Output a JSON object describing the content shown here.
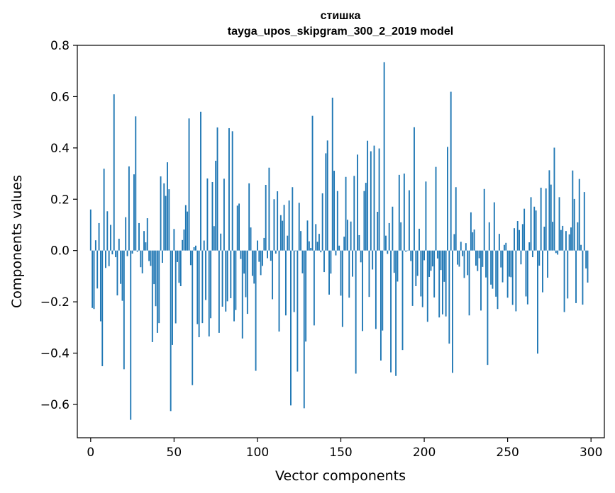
{
  "chart_data": {
    "type": "bar",
    "title": "стишка",
    "subtitle": "tayga_upos_skipgram_300_2_2019 model",
    "xlabel": "Vector components",
    "ylabel": "Components values",
    "xlim": [
      -8,
      308
    ],
    "ylim": [
      -0.73,
      0.8
    ],
    "xticks": [
      0,
      50,
      100,
      150,
      200,
      250,
      300
    ],
    "xtick_labels": [
      "0",
      "50",
      "100",
      "150",
      "200",
      "250",
      "300"
    ],
    "yticks": [
      -0.6,
      -0.4,
      -0.2,
      0.0,
      0.2,
      0.4,
      0.6,
      0.8
    ],
    "ytick_labels": [
      "−0.6",
      "−0.4",
      "−0.2",
      "0.0",
      "0.2",
      "0.4",
      "0.6",
      "0.8"
    ],
    "bar_color": "#1f77b4",
    "grid": false,
    "legend": "none",
    "x_start": 0,
    "values": [
      0.16,
      -0.224,
      -0.228,
      0.04,
      -0.148,
      0.107,
      -0.276,
      -0.451,
      0.319,
      -0.068,
      0.153,
      -0.061,
      0.1,
      -0.015,
      0.609,
      -0.026,
      -0.175,
      0.046,
      -0.13,
      -0.196,
      -0.463,
      0.13,
      -0.022,
      0.328,
      -0.66,
      -0.012,
      0.297,
      0.523,
      -0.005,
      0.107,
      -0.065,
      -0.089,
      0.076,
      0.032,
      0.126,
      -0.041,
      -0.06,
      -0.357,
      -0.131,
      -0.217,
      -0.321,
      -0.283,
      0.289,
      -0.048,
      0.262,
      0.213,
      0.344,
      0.239,
      -0.626,
      -0.368,
      0.084,
      -0.284,
      -0.045,
      -0.126,
      -0.139,
      0.041,
      0.082,
      0.177,
      0.152,
      0.515,
      -0.057,
      -0.525,
      0.013,
      0.019,
      -0.287,
      -0.338,
      0.541,
      -0.283,
      0.039,
      -0.193,
      0.281,
      -0.335,
      -0.264,
      0.267,
      0.095,
      0.35,
      0.48,
      -0.321,
      0.066,
      -0.219,
      0.28,
      -0.238,
      -0.198,
      0.477,
      -0.186,
      0.465,
      -0.276,
      -0.232,
      0.175,
      0.183,
      -0.033,
      -0.343,
      -0.09,
      -0.182,
      -0.247,
      0.262,
      0.09,
      -0.099,
      -0.129,
      -0.469,
      0.039,
      -0.044,
      -0.096,
      -0.06,
      0.049,
      0.256,
      -0.03,
      0.323,
      -0.04,
      -0.19,
      0.2,
      -0.012,
      0.231,
      -0.316,
      0.138,
      0.116,
      0.178,
      -0.253,
      0.058,
      0.195,
      -0.604,
      0.247,
      -0.24,
      -0.002,
      -0.472,
      0.186,
      0.076,
      -0.089,
      -0.615,
      -0.355,
      0.117,
      0.036,
      0.01,
      0.525,
      -0.292,
      0.103,
      0.034,
      0.065,
      -0.007,
      0.223,
      -0.084,
      0.379,
      0.429,
      -0.172,
      -0.09,
      0.596,
      0.311,
      -0.019,
      0.232,
      0.019,
      -0.176,
      -0.298,
      0.054,
      0.287,
      0.12,
      -0.184,
      0.113,
      -0.102,
      0.291,
      -0.48,
      0.374,
      0.06,
      -0.046,
      -0.314,
      0.232,
      0.264,
      0.428,
      -0.181,
      0.387,
      -0.074,
      0.409,
      -0.306,
      0.151,
      0.398,
      -0.429,
      -0.312,
      0.734,
      0.058,
      -0.013,
      0.107,
      -0.475,
      0.171,
      -0.087,
      -0.489,
      -0.121,
      0.295,
      0.11,
      -0.388,
      0.3,
      -0.005,
      -0.001,
      0.235,
      -0.041,
      -0.216,
      0.481,
      -0.139,
      -0.099,
      0.085,
      -0.179,
      -0.221,
      -0.038,
      0.269,
      -0.278,
      -0.103,
      -0.079,
      -0.062,
      -0.183,
      0.326,
      -0.031,
      -0.261,
      -0.076,
      -0.249,
      -0.122,
      -0.257,
      0.404,
      -0.363,
      0.619,
      -0.477,
      0.064,
      0.247,
      -0.055,
      -0.063,
      0.034,
      -0.022,
      -0.107,
      0.029,
      -0.096,
      -0.253,
      0.149,
      0.071,
      0.082,
      -0.059,
      -0.08,
      -0.03,
      -0.234,
      -0.064,
      0.24,
      -0.105,
      -0.446,
      0.11,
      -0.133,
      -0.149,
      0.188,
      -0.18,
      -0.228,
      0.065,
      -0.066,
      -0.124,
      0.022,
      0.03,
      -0.184,
      -0.102,
      -0.104,
      -0.212,
      0.087,
      -0.237,
      0.115,
      0.08,
      -0.054,
      0.103,
      0.163,
      -0.179,
      -0.21,
      0.032,
      0.208,
      -0.026,
      0.171,
      0.156,
      -0.402,
      -0.059,
      0.245,
      -0.163,
      0.093,
      0.242,
      -0.106,
      0.313,
      0.257,
      0.112,
      0.401,
      -0.01,
      -0.016,
      0.208,
      0.08,
      0.096,
      -0.24,
      0.076,
      -0.187,
      0.063,
      0.09,
      0.312,
      0.201,
      -0.205,
      0.11,
      0.279,
      0.022,
      -0.211,
      0.228,
      -0.07,
      -0.125
    ]
  }
}
